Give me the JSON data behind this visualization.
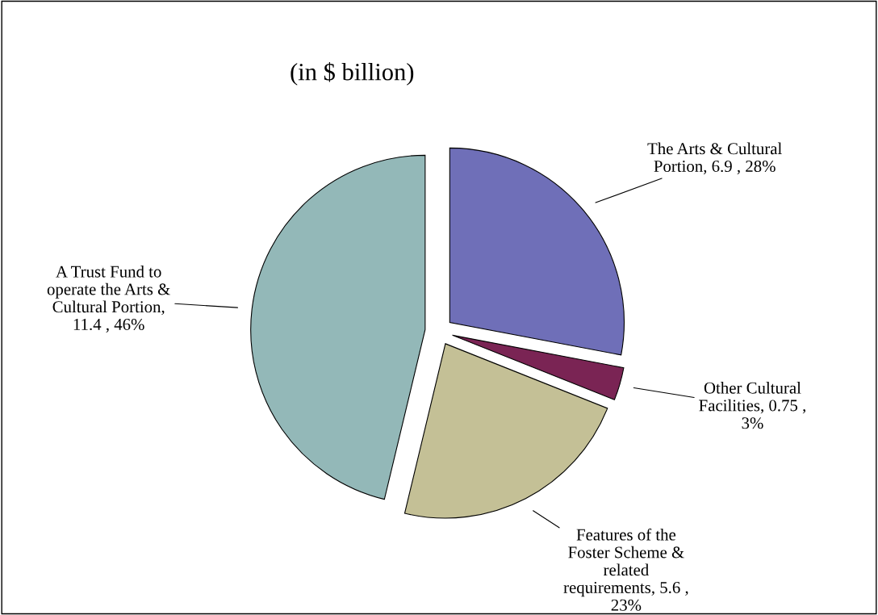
{
  "chart_data": {
    "type": "pie",
    "title": "(in $ billion)",
    "categories": [
      "The Arts & Cultural Portion",
      "Other Cultural Facilities",
      "Features of the Foster Scheme & related requirements",
      "A Trust Fund to operate the Arts & Cultural Portion"
    ],
    "values": [
      6.9,
      0.75,
      5.6,
      11.4
    ],
    "colors": [
      "#6f6fb8",
      "#7a2454",
      "#c4c096",
      "#93b8b8"
    ],
    "value_labels": [
      ", 6.9 , 28%",
      ", 0.75 , 3%",
      ", 5.6 , 23%",
      ", 11.4 , 46%"
    ]
  }
}
